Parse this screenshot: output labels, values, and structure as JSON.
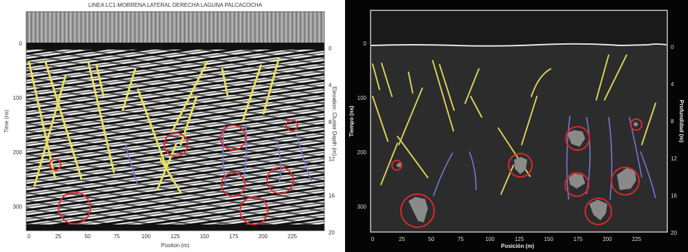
{
  "left": {
    "title": "LINEA LC1-MORRENA LATERAL DERECHA LAGUNA PALCACOCHA",
    "x_axis_label": "Positon (m)",
    "y_axis_label": "Time (ns)",
    "right_axis_label": "Elevation: Cluster Depth (m)",
    "x_ticks": [
      "0",
      "25",
      "50",
      "75",
      "100",
      "125",
      "150",
      "175",
      "200",
      "225"
    ],
    "y_ticks": [
      "0",
      "100",
      "200",
      "300"
    ],
    "depth_ticks": [
      "0",
      "4",
      "8",
      "12",
      "16",
      "20"
    ]
  },
  "right": {
    "x_axis_label": "Posición (m)",
    "y_axis_label": "Tiempo (ns)",
    "right_axis_label": "Profundidad (m)",
    "x_ticks": [
      "0",
      "25",
      "50",
      "75",
      "100",
      "125",
      "150",
      "175",
      "200",
      "225"
    ],
    "y_ticks": [
      "0",
      "100",
      "200",
      "300"
    ],
    "depth_ticks": [
      "0",
      "4",
      "8",
      "12",
      "16",
      "20"
    ]
  },
  "colors": {
    "fracture_line": "#e8e05a",
    "blue_line": "#7b78d8",
    "circle": "#e0282c",
    "boulder": "#8a8a8a",
    "dark_panel": "#2c2c2c"
  }
}
